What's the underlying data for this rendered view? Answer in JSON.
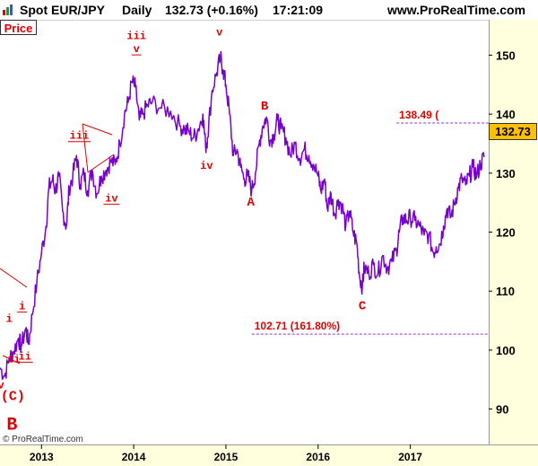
{
  "header": {
    "instrument": "Spot EUR/JPY",
    "timeframe": "Daily",
    "quote": "132.73 (+0.16%)",
    "time": "17:21:09",
    "site": "www.ProRealTime.com",
    "price_tab": "Price",
    "copyright": "© ProRealTime.com"
  },
  "colors": {
    "price": "#7700cc",
    "annotation": "#e00000",
    "axis_bg": "#ffffdd",
    "last_box": "#ffc000"
  },
  "chart_data": {
    "type": "line",
    "title": "Spot EUR/JPY",
    "ylim": [
      84,
      156
    ],
    "xlim": [
      2012.55,
      2017.85
    ],
    "y_ticks": [
      90,
      100,
      110,
      120,
      130,
      140,
      150
    ],
    "x_ticks": [
      {
        "label": "2013",
        "x": 2013.0
      },
      {
        "label": "2014",
        "x": 2014.0
      },
      {
        "label": "2015",
        "x": 2015.0
      },
      {
        "label": "2016",
        "x": 2016.0
      },
      {
        "label": "2017",
        "x": 2017.0
      }
    ],
    "last_value": "132.73",
    "series": [
      {
        "values": [
          [
            2012.55,
            97.0
          ],
          [
            2012.6,
            95.6
          ],
          [
            2012.65,
            98.6
          ],
          [
            2012.7,
            99.8
          ],
          [
            2012.75,
            102.0
          ],
          [
            2012.78,
            100.6
          ],
          [
            2012.83,
            103.7
          ],
          [
            2012.86,
            101.0
          ],
          [
            2012.9,
            106.0
          ],
          [
            2012.95,
            111.5
          ],
          [
            2013.0,
            116.5
          ],
          [
            2013.05,
            121.0
          ],
          [
            2013.08,
            127.5
          ],
          [
            2013.12,
            129.0
          ],
          [
            2013.15,
            127.0
          ],
          [
            2013.19,
            129.5
          ],
          [
            2013.23,
            123.5
          ],
          [
            2013.27,
            121.0
          ],
          [
            2013.3,
            127.5
          ],
          [
            2013.34,
            129.5
          ],
          [
            2013.38,
            133.0
          ],
          [
            2013.42,
            128.0
          ],
          [
            2013.46,
            130.0
          ],
          [
            2013.5,
            127.0
          ],
          [
            2013.55,
            130.5
          ],
          [
            2013.6,
            126.5
          ],
          [
            2013.65,
            129.5
          ],
          [
            2013.7,
            130.5
          ],
          [
            2013.75,
            132.0
          ],
          [
            2013.8,
            131.5
          ],
          [
            2013.85,
            135.0
          ],
          [
            2013.9,
            140.0
          ],
          [
            2013.94,
            142.0
          ],
          [
            2013.98,
            145.5
          ],
          [
            2014.02,
            144.5
          ],
          [
            2014.06,
            139.0
          ],
          [
            2014.1,
            140.0
          ],
          [
            2014.15,
            141.5
          ],
          [
            2014.2,
            142.0
          ],
          [
            2014.3,
            141.0
          ],
          [
            2014.4,
            140.5
          ],
          [
            2014.5,
            138.0
          ],
          [
            2014.55,
            137.5
          ],
          [
            2014.6,
            137.0
          ],
          [
            2014.65,
            136.0
          ],
          [
            2014.7,
            137.5
          ],
          [
            2014.75,
            140.0
          ],
          [
            2014.78,
            134.5
          ],
          [
            2014.8,
            136.0
          ],
          [
            2014.85,
            144.0
          ],
          [
            2014.9,
            147.0
          ],
          [
            2014.94,
            149.5
          ],
          [
            2014.97,
            147.5
          ],
          [
            2015.0,
            145.0
          ],
          [
            2015.04,
            140.0
          ],
          [
            2015.08,
            133.0
          ],
          [
            2015.12,
            134.0
          ],
          [
            2015.16,
            131.0
          ],
          [
            2015.2,
            129.0
          ],
          [
            2015.24,
            129.5
          ],
          [
            2015.28,
            127.0
          ],
          [
            2015.32,
            130.0
          ],
          [
            2015.36,
            135.0
          ],
          [
            2015.4,
            138.0
          ],
          [
            2015.44,
            139.5
          ],
          [
            2015.48,
            135.5
          ],
          [
            2015.52,
            136.5
          ],
          [
            2015.56,
            139.0
          ],
          [
            2015.6,
            137.5
          ],
          [
            2015.65,
            136.0
          ],
          [
            2015.7,
            133.0
          ],
          [
            2015.75,
            135.0
          ],
          [
            2015.8,
            132.5
          ],
          [
            2015.85,
            134.0
          ],
          [
            2015.9,
            133.0
          ],
          [
            2015.95,
            131.5
          ],
          [
            2016.0,
            129.5
          ],
          [
            2016.03,
            127.0
          ],
          [
            2016.07,
            129.0
          ],
          [
            2016.1,
            124.0
          ],
          [
            2016.14,
            126.5
          ],
          [
            2016.18,
            123.0
          ],
          [
            2016.22,
            125.5
          ],
          [
            2016.26,
            124.5
          ],
          [
            2016.3,
            121.0
          ],
          [
            2016.34,
            123.5
          ],
          [
            2016.38,
            120.0
          ],
          [
            2016.42,
            118.0
          ],
          [
            2016.45,
            112.5
          ],
          [
            2016.48,
            110.8
          ],
          [
            2016.5,
            114.0
          ],
          [
            2016.55,
            113.0
          ],
          [
            2016.6,
            114.5
          ],
          [
            2016.65,
            113.0
          ],
          [
            2016.7,
            116.0
          ],
          [
            2016.75,
            114.0
          ],
          [
            2016.8,
            115.0
          ],
          [
            2016.85,
            117.0
          ],
          [
            2016.88,
            120.0
          ],
          [
            2016.92,
            122.5
          ],
          [
            2016.96,
            122.0
          ],
          [
            2017.0,
            122.5
          ],
          [
            2017.05,
            122.0
          ],
          [
            2017.1,
            121.0
          ],
          [
            2017.15,
            119.5
          ],
          [
            2017.2,
            119.5
          ],
          [
            2017.25,
            116.5
          ],
          [
            2017.28,
            117.5
          ],
          [
            2017.32,
            118.0
          ],
          [
            2017.36,
            121.0
          ],
          [
            2017.4,
            124.0
          ],
          [
            2017.44,
            122.5
          ],
          [
            2017.48,
            125.0
          ],
          [
            2017.52,
            127.5
          ],
          [
            2017.56,
            129.0
          ],
          [
            2017.6,
            128.0
          ],
          [
            2017.64,
            129.5
          ],
          [
            2017.68,
            131.0
          ],
          [
            2017.72,
            129.5
          ],
          [
            2017.76,
            131.5
          ],
          [
            2017.8,
            132.73
          ]
        ]
      }
    ],
    "levels": [
      {
        "label": "138.49 (",
        "value": 138.49,
        "from": 2016.85
      },
      {
        "label": "102.71 (161.80%)",
        "value": 102.71,
        "from": 2015.28
      }
    ],
    "wave_labels": [
      {
        "text": "v",
        "x": 2012.56,
        "y": 93.5
      },
      {
        "text": "(C)",
        "x": 2012.69,
        "y": 91.5
      },
      {
        "text": "B",
        "x": 2012.68,
        "y": 86.5
      },
      {
        "text": "i",
        "x": 2012.65,
        "y": 104.8
      },
      {
        "text": "i",
        "x": 2012.79,
        "y": 106.9
      },
      {
        "text": "ii",
        "x": 2012.7,
        "y": 97.9
      },
      {
        "text": "ii",
        "x": 2012.82,
        "y": 98.4
      },
      {
        "text": "iii",
        "x": 2013.41,
        "y": 135.8
      },
      {
        "text": "iv",
        "x": 2013.76,
        "y": 125.2
      },
      {
        "text": "iii",
        "x": 2014.03,
        "y": 152.7
      },
      {
        "text": "v",
        "x": 2014.03,
        "y": 150.5
      },
      {
        "text": "v",
        "x": 2014.93,
        "y": 153.3
      },
      {
        "text": "iv",
        "x": 2014.79,
        "y": 130.7
      },
      {
        "text": "A",
        "x": 2015.27,
        "y": 124.5
      },
      {
        "text": "B",
        "x": 2015.42,
        "y": 140.8
      },
      {
        "text": "C",
        "x": 2016.48,
        "y": 106.9
      }
    ]
  }
}
